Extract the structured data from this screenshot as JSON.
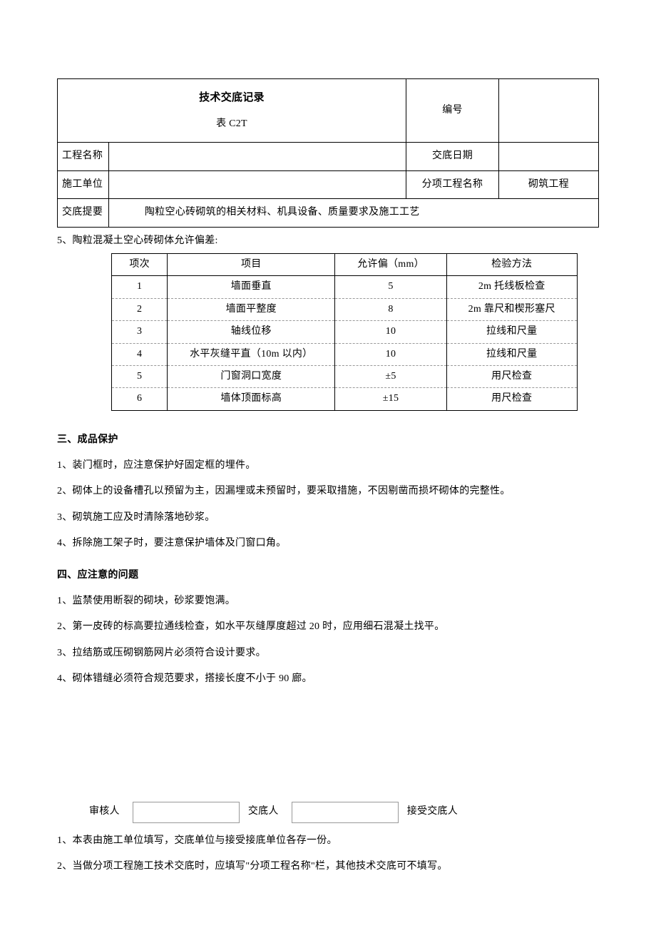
{
  "header": {
    "title_main": "技术交底记录",
    "title_sub": "表 C2T",
    "labels": {
      "bianhao": "编号",
      "gongcheng_mingcheng": "工程名称",
      "jiaodi_riqi": "交底日期",
      "shigong_danwei": "施工单位",
      "fenxiang_gongcheng": "分项工程名称",
      "jiaodi_tiyao": "交底提要"
    },
    "values": {
      "bianhao": "",
      "gongcheng_mingcheng": "",
      "jiaodi_riqi": "",
      "shigong_danwei": "",
      "fenxiang_gongcheng": "砌筑工程",
      "jiaodi_tiyao": "陶粒空心砖砌筑的相关材料、机具设备、质量要求及施工工艺"
    }
  },
  "tolerance": {
    "caption": "5、陶粒混凝土空心砖砌体允许偏差:",
    "columns": [
      "项次",
      "项目",
      "允许偏（mm）",
      "检验方法"
    ],
    "col_widths": [
      "12%",
      "36%",
      "24%",
      "28%"
    ],
    "rows": [
      [
        "1",
        "墙面垂直",
        "5",
        "2m 托线板检查"
      ],
      [
        "2",
        "墙面平整度",
        "8",
        "2m 靠尺和楔形塞尺"
      ],
      [
        "3",
        "轴线位移",
        "10",
        "拉线和尺量"
      ],
      [
        "4",
        "水平灰缝平直（10m 以内）",
        "10",
        "拉线和尺量"
      ],
      [
        "5",
        "门窗洞口宽度",
        "±5",
        "用尺检查"
      ],
      [
        "6",
        "墙体顶面标高",
        "±15",
        "用尺检查"
      ]
    ]
  },
  "section3": {
    "heading": "三、成品保护",
    "items": [
      "1、装门框时，应注意保护好固定框的埋件。",
      "2、砌体上的设备槽孔以预留为主，因漏埋或未预留时，要采取措施，不因剔凿而损坏砌体的完整性。",
      "3、砌筑施工应及时清除落地砂浆。",
      "4、拆除施工架子时，要注意保护墙体及门窗口角。"
    ]
  },
  "section4": {
    "heading": "四、应注意的问题",
    "items": [
      "1、监禁使用断裂的砌块，砂浆要饱满。",
      "2、第一皮砖的标高要拉通线检查，如水平灰缝厚度超过 20 时，应用细石混凝土找平。",
      "3、拉结筋或压砌钢筋网片必须符合设计要求。",
      "4、砌体错缝必须符合规范要求，搭接长度不小于 90 廊。"
    ]
  },
  "signatures": {
    "labels": [
      "审核人",
      "交底人",
      "接受交底人"
    ]
  },
  "footnotes": [
    "1、本表由施工单位填写，交底单位与接受接底单位各存一份。",
    "2、当做分项工程施工技术交底时，应填写\"分项工程名称\"栏，其他技术交底可不填写。"
  ],
  "style": {
    "font_family": "SimSun",
    "body_fontsize": 14,
    "table_border_color": "#000000",
    "dashed_border_color": "#999999",
    "background": "#ffffff",
    "text_color": "#000000"
  }
}
